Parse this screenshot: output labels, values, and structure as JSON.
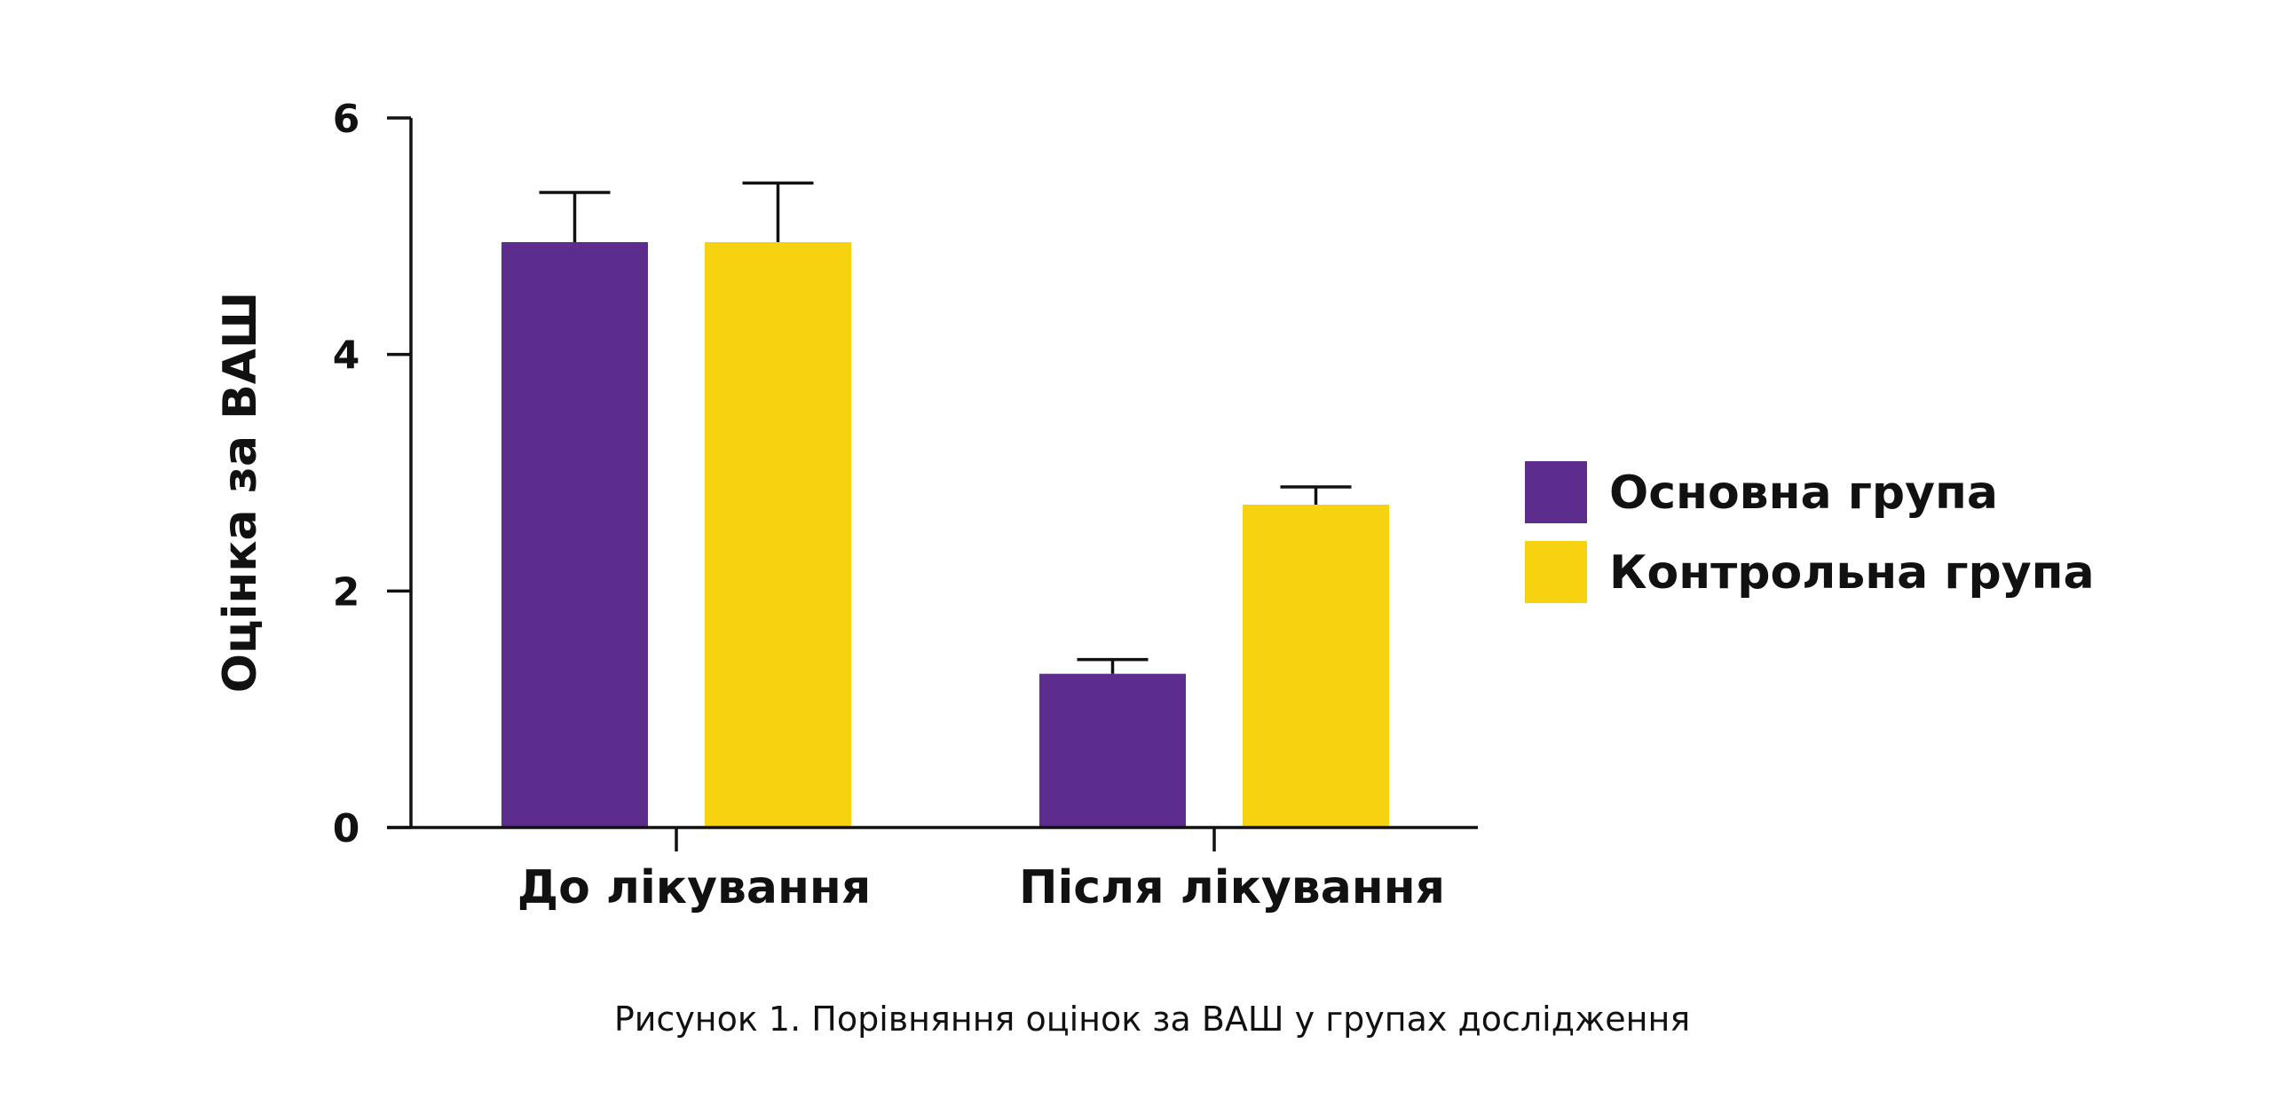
{
  "chart_data": {
    "type": "bar",
    "categories": [
      "До лікування",
      "Після лікування"
    ],
    "series": [
      {
        "name": "Основна група",
        "color": "#5C2D8C",
        "values": [
          4.95,
          1.3
        ],
        "error": [
          0.42,
          0.12
        ]
      },
      {
        "name": "Контрольна група",
        "color": "#F6D211",
        "values": [
          4.95,
          2.73
        ],
        "error": [
          0.5,
          0.15
        ]
      }
    ],
    "ylabel": "Оцінка за ВАШ",
    "ylim": [
      0,
      6
    ],
    "yticks": [
      0,
      2,
      4,
      6
    ],
    "grid": false,
    "legend_position": "right",
    "caption": "Рисунок 1. Порівняння оцінок за ВАШ у групах дослідження"
  }
}
